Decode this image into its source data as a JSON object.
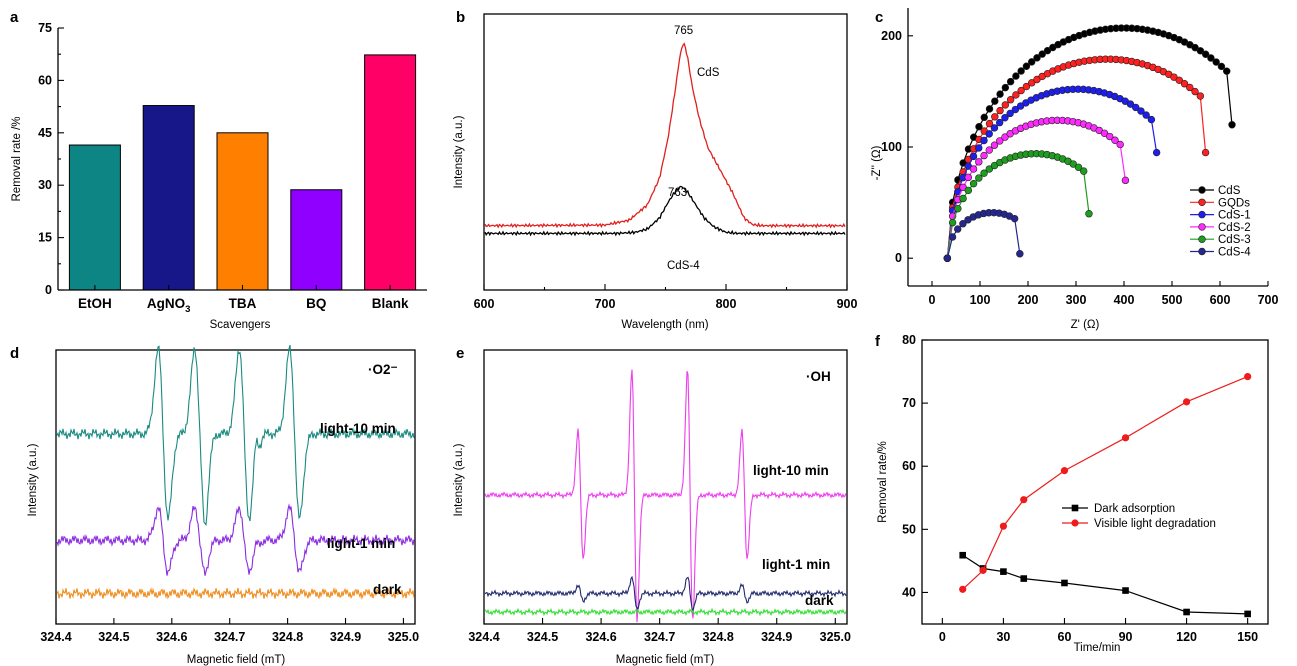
{
  "chart_data": [
    {
      "panel": "a",
      "type": "bar",
      "categories": [
        "EtOH",
        "AgNO3",
        "TBA",
        "BQ",
        "Blank"
      ],
      "category_labels": [
        {
          "base": "EtOH",
          "sub": ""
        },
        {
          "base": "AgNO",
          "sub": "3"
        },
        {
          "base": "TBA",
          "sub": ""
        },
        {
          "base": "BQ",
          "sub": ""
        },
        {
          "base": "Blank",
          "sub": ""
        }
      ],
      "values": [
        41.5,
        52.8,
        45.0,
        28.7,
        67.3
      ],
      "colors": [
        "#0e8585",
        "#17178a",
        "#ff8000",
        "#8f00ff",
        "#ff0066"
      ],
      "xlabel": "Scavengers",
      "ylabel": "Removal rate /%",
      "ylim": [
        0,
        75
      ],
      "yticks": [
        0,
        15,
        30,
        45,
        60,
        75
      ]
    },
    {
      "panel": "b",
      "type": "line",
      "xlabel": "Wavelength (nm)",
      "ylabel": "Intensity (a.u.)",
      "xlim": [
        600,
        900
      ],
      "xticks": [
        600,
        700,
        800,
        900
      ],
      "ylim": [
        0,
        1
      ],
      "series": [
        {
          "name": "CdS",
          "color": "#e0201e",
          "peak_label": "765",
          "x": [
            600,
            700,
            720,
            735,
            745,
            752,
            758,
            762,
            765,
            768,
            772,
            778,
            785,
            795,
            805,
            815,
            822,
            830,
            900
          ],
          "y": [
            0.165,
            0.168,
            0.19,
            0.26,
            0.38,
            0.56,
            0.78,
            0.94,
            1.0,
            0.94,
            0.8,
            0.65,
            0.52,
            0.42,
            0.32,
            0.2,
            0.17,
            0.165,
            0.165
          ]
        },
        {
          "name": "CdS-4",
          "color": "#000000",
          "peak_label": "763",
          "x": [
            600,
            710,
            725,
            735,
            745,
            752,
            758,
            763,
            768,
            775,
            782,
            790,
            800,
            810,
            900
          ],
          "y": [
            0.13,
            0.13,
            0.135,
            0.15,
            0.2,
            0.27,
            0.32,
            0.345,
            0.32,
            0.26,
            0.2,
            0.16,
            0.135,
            0.13,
            0.13
          ]
        }
      ]
    },
    {
      "panel": "c",
      "type": "scatter",
      "xlabel": "Z'  (Ω)",
      "ylabel": "-Z''  (Ω)",
      "xlim": [
        -50,
        700
      ],
      "ylim": [
        -25,
        225
      ],
      "xticks": [
        0,
        100,
        200,
        300,
        400,
        500,
        600,
        700
      ],
      "yticks": [
        0,
        100,
        200
      ],
      "legend": "bottom-right",
      "series": [
        {
          "name": "CdS",
          "color": "#000000",
          "arc": {
            "x0": 32,
            "x1": 625,
            "peak": 207,
            "y_end": 120
          }
        },
        {
          "name": "GQDs",
          "color": "#ff2020",
          "arc": {
            "x0": 32,
            "x1": 570,
            "peak": 179,
            "y_end": 95
          }
        },
        {
          "name": "CdS-1",
          "color": "#1e1eee",
          "arc": {
            "x0": 32,
            "x1": 468,
            "peak": 152,
            "y_end": 95
          }
        },
        {
          "name": "CdS-2",
          "color": "#ff2aff",
          "arc": {
            "x0": 32,
            "x1": 403,
            "peak": 124,
            "y_end": 70
          }
        },
        {
          "name": "CdS-3",
          "color": "#1e9e1e",
          "arc": {
            "x0": 32,
            "x1": 327,
            "peak": 94,
            "y_end": 40
          }
        },
        {
          "name": "CdS-4",
          "color": "#262690",
          "arc": {
            "x0": 32,
            "x1": 183,
            "peak": 41,
            "y_end": 4
          }
        }
      ]
    },
    {
      "panel": "d",
      "type": "line",
      "annotation": "·O2⁻",
      "xlabel": "Magnetic field (mT)",
      "ylabel": "Intensity (a.u.)",
      "xlim": [
        324.4,
        325.02
      ],
      "xticks": [
        "324.4",
        "324.5",
        "324.6",
        "324.7",
        "324.8",
        "324.9",
        "325.0"
      ],
      "series": [
        {
          "name": "light-10 min",
          "color": "#1a8a80",
          "baseline": 0.7,
          "amp": 0.32,
          "peaks": [
            324.585,
            324.648,
            324.725,
            324.812
          ]
        },
        {
          "name": "light-1 min",
          "color": "#8a2be2",
          "baseline": 0.3,
          "amp": 0.12,
          "peaks": [
            324.585,
            324.648,
            324.725,
            324.812
          ]
        },
        {
          "name": "dark",
          "color": "#f08c1e",
          "baseline": 0.1,
          "amp": 0.0,
          "peaks": []
        }
      ]
    },
    {
      "panel": "e",
      "type": "line",
      "annotation": "·OH",
      "xlabel": "Magnetic field (mT)",
      "ylabel": "Intensity (a.u.)",
      "xlim": [
        324.4,
        325.02
      ],
      "xticks": [
        "324.4",
        "324.5",
        "324.6",
        "324.7",
        "324.8",
        "324.9",
        "325.0"
      ],
      "series": [
        {
          "name": "light-10 min",
          "color": "#ee3cee",
          "baseline": 0.47,
          "amps": [
            0.24,
            0.47,
            0.47,
            0.24
          ],
          "peaks": [
            324.565,
            324.657,
            324.752,
            324.845
          ]
        },
        {
          "name": "light-1 min",
          "color": "#1f2a6e",
          "baseline": 0.1,
          "amps": [
            0.03,
            0.06,
            0.06,
            0.03
          ],
          "peaks": [
            324.565,
            324.657,
            324.752,
            324.845
          ]
        },
        {
          "name": "dark",
          "color": "#33dd33",
          "baseline": 0.03,
          "amps": [],
          "peaks": []
        }
      ]
    },
    {
      "panel": "f",
      "type": "line",
      "xlabel": "Time/min",
      "ylabel": "Removal rate/%",
      "xlim": [
        -10,
        160
      ],
      "ylim": [
        35,
        80
      ],
      "xticks": [
        0,
        30,
        60,
        90,
        120,
        150
      ],
      "yticks": [
        40,
        50,
        60,
        70,
        80
      ],
      "legend": "center-right",
      "series": [
        {
          "name": "Dark adsorption",
          "color": "#000000",
          "marker": "square",
          "x": [
            10,
            20,
            30,
            40,
            60,
            90,
            120,
            150
          ],
          "y": [
            45.9,
            43.8,
            43.3,
            42.2,
            41.5,
            40.3,
            36.9,
            36.6
          ]
        },
        {
          "name": "Visible light degradation",
          "color": "#ee1c1c",
          "marker": "circle",
          "x": [
            10,
            20,
            30,
            40,
            60,
            90,
            120,
            150
          ],
          "y": [
            40.5,
            43.5,
            50.5,
            54.7,
            59.3,
            64.5,
            70.2,
            74.2
          ]
        }
      ]
    }
  ]
}
